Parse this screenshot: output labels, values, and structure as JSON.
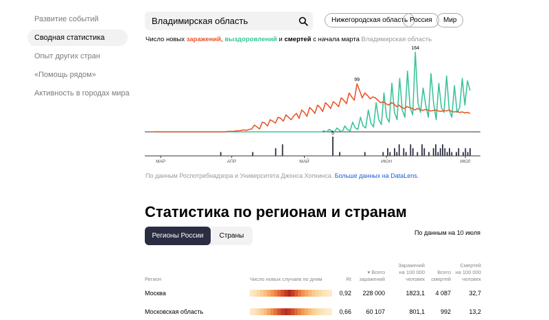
{
  "sidebar": {
    "items": [
      {
        "label": "Развитие событий"
      },
      {
        "label": "Сводная статистика"
      },
      {
        "label": "Опыт других стран"
      },
      {
        "label": "«Помощь рядом»"
      },
      {
        "label": "Активность в городах мира"
      }
    ]
  },
  "search": {
    "value": "Владимирская область"
  },
  "filters": [
    "Нижегородская область",
    "Россия",
    "Мир"
  ],
  "chart_header": {
    "prefix": "Число новых ",
    "infections": "заражений",
    "sep1": ", ",
    "recoveries": "выздоровлений",
    "sep2": " и ",
    "deaths": "смертей",
    "suffix": " с начала марта ",
    "region": "Владимирская область"
  },
  "chart_data": {
    "type": "line",
    "x_ticks": [
      "МАР",
      "АПР",
      "МАЙ",
      "ИЮН",
      "ИЮЛ"
    ],
    "annotations": {
      "infections_peak": 99,
      "recoveries_peak": 164,
      "deaths_peak": 5
    },
    "colors": {
      "infections": "#e8552b",
      "recoveries": "#3ac39b",
      "deaths": "#2b2d42"
    },
    "series": [
      {
        "name": "заражений",
        "values": [
          0,
          0,
          0,
          0,
          0,
          0,
          0,
          0,
          0,
          0,
          0,
          0,
          0,
          0,
          0,
          0,
          0,
          0,
          0,
          0,
          0,
          0,
          0,
          0,
          0,
          0,
          0,
          0,
          1,
          1,
          1,
          2,
          2,
          3,
          4,
          3,
          5,
          6,
          14,
          10,
          6,
          20,
          18,
          12,
          25,
          22,
          18,
          30,
          28,
          22,
          35,
          30,
          25,
          33,
          38,
          28,
          45,
          40,
          32,
          50,
          45,
          38,
          55,
          50,
          42,
          60,
          55,
          48,
          62,
          58,
          52,
          70,
          65,
          58,
          80,
          72,
          65,
          99,
          85,
          70,
          80,
          75,
          68,
          72,
          70,
          65,
          60,
          62,
          58,
          55,
          60,
          58,
          52,
          55,
          50,
          48,
          52,
          50,
          48,
          45,
          48,
          46,
          44,
          46,
          45,
          43,
          44,
          45,
          43,
          42,
          44,
          43,
          45,
          42,
          41,
          42,
          40,
          41,
          39,
          40,
          38
        ]
      },
      {
        "name": "выздоровлений",
        "values": [
          0,
          0,
          0,
          0,
          0,
          0,
          0,
          0,
          0,
          0,
          0,
          0,
          0,
          0,
          0,
          0,
          0,
          0,
          0,
          0,
          0,
          0,
          0,
          0,
          0,
          0,
          0,
          0,
          0,
          0,
          0,
          0,
          0,
          0,
          0,
          0,
          0,
          0,
          0,
          0,
          0,
          0,
          0,
          0,
          0,
          0,
          0,
          0,
          0,
          0,
          0,
          0,
          0,
          0,
          0,
          0,
          0,
          0,
          0,
          0,
          0,
          0,
          0,
          0,
          0,
          2,
          0,
          5,
          2,
          0,
          8,
          3,
          0,
          12,
          5,
          2,
          20,
          8,
          5,
          30,
          12,
          8,
          45,
          18,
          10,
          60,
          25,
          15,
          80,
          30,
          20,
          100,
          40,
          25,
          110,
          45,
          30,
          125,
          50,
          35,
          164,
          60,
          40,
          90,
          55,
          30,
          120,
          60,
          25,
          100,
          50,
          40,
          115,
          45,
          30,
          95,
          40,
          50,
          110,
          55,
          105,
          85
        ]
      },
      {
        "name": "смертей",
        "values": [
          0,
          0,
          0,
          0,
          0,
          0,
          0,
          0,
          0,
          0,
          0,
          0,
          0,
          0,
          0,
          0,
          0,
          0,
          0,
          0,
          0,
          0,
          0,
          0,
          0,
          0,
          0,
          0,
          0,
          1,
          0,
          0,
          0,
          0,
          0,
          0,
          0,
          0,
          0,
          0,
          0,
          0,
          0,
          1,
          0,
          0,
          0,
          0,
          0,
          0,
          0,
          0,
          0,
          2,
          0,
          0,
          3,
          0,
          0,
          0,
          0,
          0,
          0,
          0,
          0,
          0,
          0,
          0,
          0,
          0,
          0,
          0,
          0,
          0,
          0,
          0,
          0,
          0,
          5,
          0,
          0,
          1,
          0,
          0,
          0,
          0,
          0,
          0,
          0,
          0,
          0,
          0,
          1,
          0,
          0,
          0,
          0,
          0,
          0,
          0,
          1,
          0,
          2,
          1,
          0,
          2,
          1,
          3,
          0,
          2,
          1,
          0,
          3,
          2,
          0,
          1,
          0,
          3,
          2,
          0,
          1,
          0,
          2,
          3,
          1,
          2,
          3,
          2,
          1,
          2,
          1,
          0,
          1,
          2,
          0,
          1,
          2,
          1,
          2
        ]
      }
    ]
  },
  "source": {
    "text": "По данным Роспотребнадзора и Университета Джонса Хопкинса. ",
    "link": "Больше данных на DataLens."
  },
  "section": {
    "title": "Статистика по регионам и странам",
    "tabs": [
      "Регионы России",
      "Страны"
    ],
    "as_of": "По данным на 10 июля"
  },
  "table": {
    "headers": {
      "region": "Регион",
      "cases_by_day": "Число новых случаев по дням",
      "rt": "Rt",
      "total_cases_1": "▾ Всего",
      "total_cases_2": "заражений",
      "per100k_cases_1": "Заражений",
      "per100k_cases_2": "на 100 000",
      "per100k_cases_3": "человек",
      "total_deaths_1": "Всего",
      "total_deaths_2": "смертей",
      "per100k_deaths_1": "Смертей",
      "per100k_deaths_2": "на 100 000",
      "per100k_deaths_3": "человек"
    },
    "rows": [
      {
        "region": "Москва",
        "rt": "0,92",
        "total_cases": "228 000",
        "per100k_cases": "1823,1",
        "total_deaths": "4 087",
        "per100k_deaths": "32,7",
        "heat": [
          "#fde8c8",
          "#fde2bb",
          "#fcd9a8",
          "#fbcd94",
          "#f9c07e",
          "#f6ad68",
          "#f39a55",
          "#ee8444",
          "#e56a35",
          "#d9512b",
          "#c83a24",
          "#b42a1f",
          "#c93c25",
          "#dc5a2e",
          "#e87a3d",
          "#f19350",
          "#f5a864",
          "#f8bb78",
          "#fac98c",
          "#fbd49c",
          "#fcdcab",
          "#fde3b8",
          "#fde8c2",
          "#fdebc8"
        ]
      },
      {
        "region": "Московская область",
        "rt": "0,66",
        "total_cases": "60 107",
        "per100k_cases": "801,1",
        "total_deaths": "992",
        "per100k_deaths": "13,2",
        "heat": [
          "#fde8c8",
          "#fde2bb",
          "#fcd9a8",
          "#fbcd94",
          "#f8bd7b",
          "#f4a661",
          "#ee8c4b",
          "#e4703a",
          "#d6552d",
          "#c73f26",
          "#b83022",
          "#c53925",
          "#d34d2b",
          "#e16a36",
          "#eb8444",
          "#f29a55",
          "#f6ad68",
          "#f9be7c",
          "#fbcd90",
          "#fcd8a2",
          "#fde0b1",
          "#fde6bd",
          "#fdeac5",
          "#fdedca"
        ]
      }
    ]
  }
}
